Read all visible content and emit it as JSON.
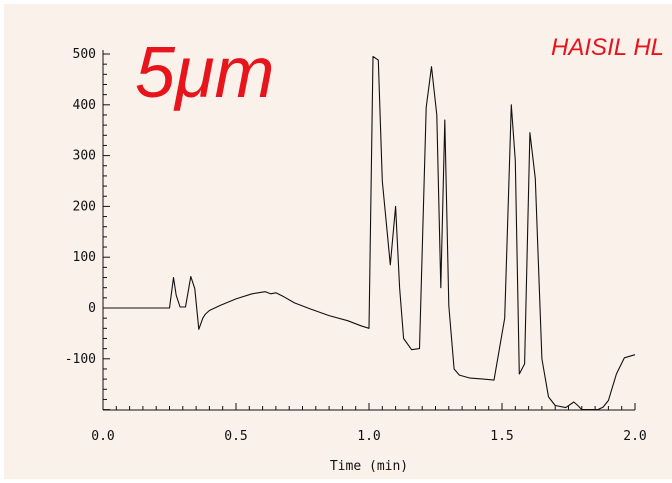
{
  "colors": {
    "background": "#fbf1eb",
    "annotation": "#e8141c",
    "trace": "#111111"
  },
  "chart_data": {
    "type": "line",
    "xlabel": "Time (min)",
    "ylabel": "",
    "xlim": [
      0.0,
      2.0
    ],
    "ylim": [
      -200,
      510
    ],
    "x_ticks": [
      "0.0",
      "0.5",
      "1.0",
      "1.5",
      "2.0"
    ],
    "y_ticks": [
      "500",
      "400",
      "300",
      "200",
      "100",
      "0",
      "-100"
    ],
    "grid": false,
    "annotations": {
      "particle_size": "5μm",
      "column": "HAISIL HL"
    },
    "series": [
      {
        "x": [
          0.0,
          0.25,
          0.265,
          0.275,
          0.29,
          0.31,
          0.33,
          0.345,
          0.36,
          0.375,
          0.385,
          0.4,
          0.44,
          0.5,
          0.56,
          0.61,
          0.63,
          0.65,
          0.68,
          0.72,
          0.78,
          0.85,
          0.92,
          0.97,
          1.0,
          1.015,
          1.035,
          1.05,
          1.08,
          1.1,
          1.115,
          1.13,
          1.16,
          1.19,
          1.215,
          1.235,
          1.255,
          1.27,
          1.285,
          1.3,
          1.32,
          1.34,
          1.38,
          1.43,
          1.47,
          1.51,
          1.535,
          1.55,
          1.565,
          1.585,
          1.605,
          1.625,
          1.65,
          1.675,
          1.7,
          1.74,
          1.77,
          1.785,
          1.8,
          1.83,
          1.86,
          1.88,
          1.9,
          1.93,
          1.96,
          2.0
        ],
        "y": [
          0,
          0,
          60,
          25,
          2,
          2,
          62,
          38,
          -42,
          -20,
          -12,
          -5,
          5,
          18,
          28,
          32,
          28,
          30,
          22,
          10,
          -2,
          -15,
          -25,
          -35,
          -40,
          495,
          488,
          250,
          85,
          200,
          40,
          -60,
          -82,
          -80,
          395,
          475,
          380,
          40,
          370,
          5,
          -120,
          -132,
          -138,
          -140,
          -142,
          -20,
          400,
          290,
          -130,
          -110,
          345,
          255,
          -100,
          -175,
          -192,
          -196,
          -185,
          -192,
          -200,
          -200,
          -200,
          -195,
          -182,
          -130,
          -98,
          -92
        ]
      }
    ]
  }
}
